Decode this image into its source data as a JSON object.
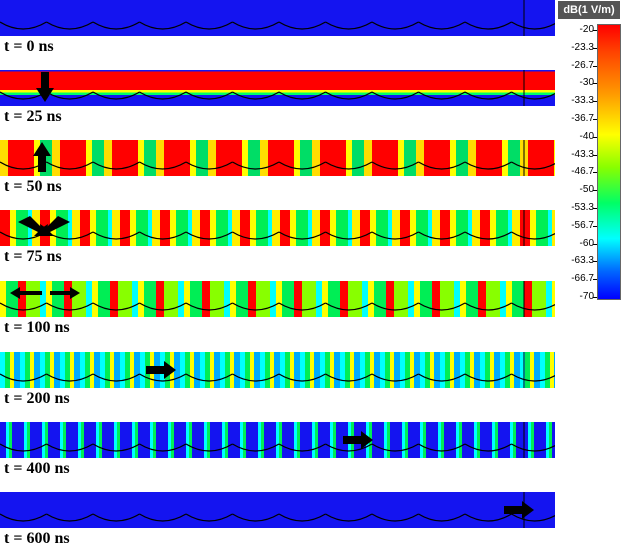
{
  "panels": [
    {
      "label": "t = 0 ns"
    },
    {
      "label": "t = 25 ns"
    },
    {
      "label": "t = 50 ns"
    },
    {
      "label": "t = 75 ns"
    },
    {
      "label": "t = 100 ns"
    },
    {
      "label": "t = 200 ns"
    },
    {
      "label": "t = 400 ns"
    },
    {
      "label": "t = 600 ns"
    }
  ],
  "colorbar": {
    "title": "dB(1 V/m)",
    "ticks": [
      "-20",
      "-23.3",
      "-26.7",
      "-30",
      "-33.3",
      "-36.7",
      "-40",
      "-43.3",
      "-46.7",
      "-50",
      "-53.3",
      "-56.7",
      "-60",
      "-63.3",
      "-66.7",
      "-70"
    ]
  }
}
